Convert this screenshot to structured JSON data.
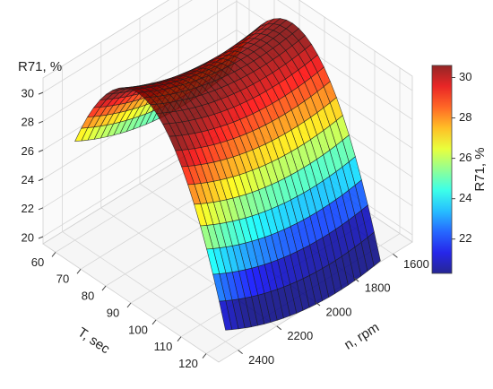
{
  "chart_data": {
    "type": "surface3d",
    "title": "",
    "x": {
      "label": "T, sec",
      "ticks": [
        60,
        70,
        80,
        90,
        100,
        110,
        120
      ],
      "range": [
        55,
        125
      ]
    },
    "y": {
      "label": "n, rpm",
      "ticks": [
        1600,
        1800,
        2000,
        2200,
        2400
      ],
      "range": [
        1500,
        2500
      ]
    },
    "z": {
      "label": "R71, %",
      "ticks": [
        20,
        22,
        24,
        26,
        28,
        30
      ],
      "range": [
        19.5,
        31
      ]
    },
    "colorbar": {
      "label": "R71, %",
      "ticks": [
        22,
        24,
        26,
        28,
        30
      ],
      "range": [
        20.3,
        30.6
      ],
      "colormap": "jet",
      "placement": "right"
    },
    "surface": {
      "model": "quadratic",
      "peak_value": 30.5,
      "peak_T": 85,
      "peak_n": 1820,
      "corners": [
        {
          "T": 60,
          "n": 1600,
          "R71": 24.5
        },
        {
          "T": 120,
          "n": 1600,
          "R71": 21.0
        },
        {
          "T": 60,
          "n": 2400,
          "R71": 25.0
        },
        {
          "T": 120,
          "n": 2400,
          "R71": 20.3
        }
      ],
      "grid_lines": 24,
      "alpha": 0.85
    },
    "grid": true
  }
}
